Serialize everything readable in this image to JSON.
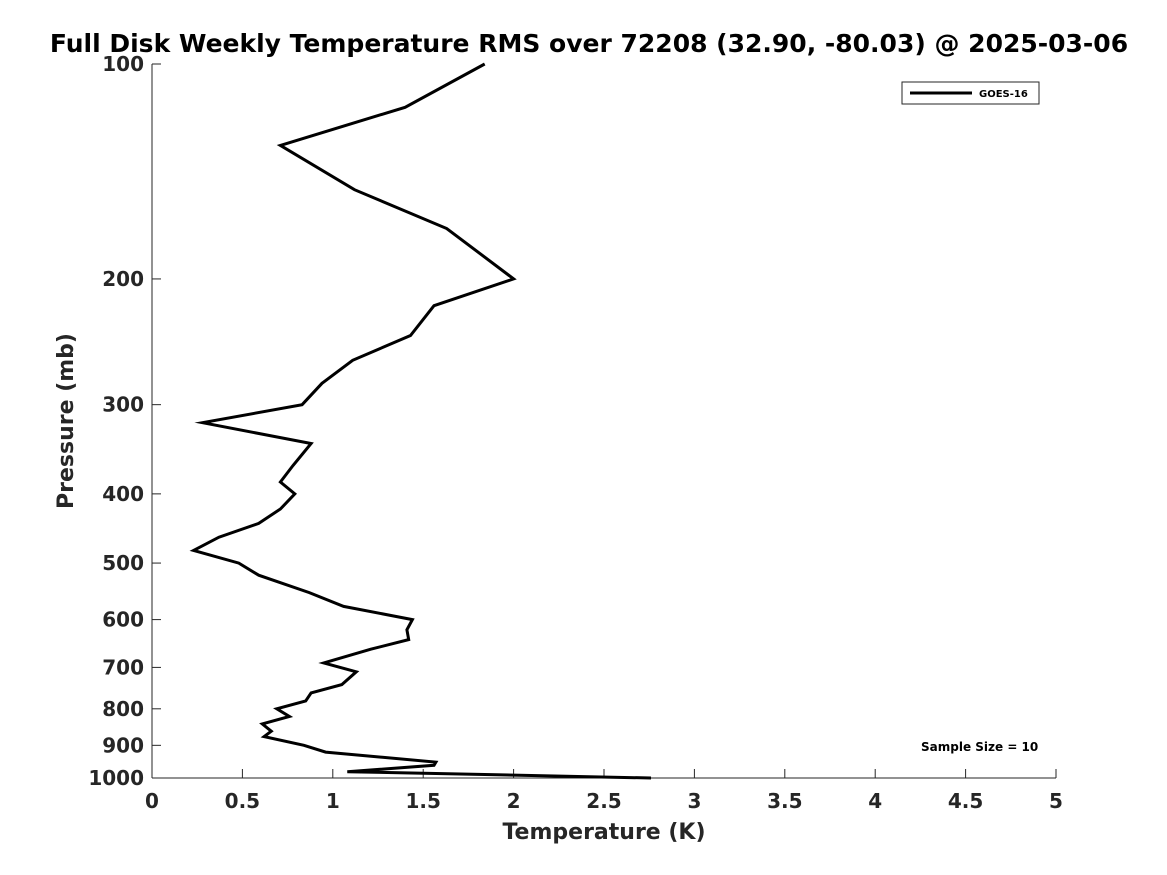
{
  "chart_data": {
    "type": "line",
    "title": "Full Disk Weekly Temperature RMS over 72208 (32.90, -80.03) @ 2025-03-06",
    "xlabel": "Temperature (K)",
    "ylabel": "Pressure (mb)",
    "xlim": [
      0,
      5
    ],
    "ylim": [
      100,
      1000
    ],
    "yscale": "log",
    "y_reversed": true,
    "x_ticks": [
      "0",
      "0.5",
      "1",
      "1.5",
      "2",
      "2.5",
      "3",
      "3.5",
      "4",
      "4.5",
      "5"
    ],
    "x_tick_values": [
      0,
      0.5,
      1,
      1.5,
      2,
      2.5,
      3,
      3.5,
      4,
      4.5,
      5
    ],
    "y_ticks": [
      "100",
      "200",
      "300",
      "400",
      "500",
      "600",
      "700",
      "800",
      "900",
      "1000"
    ],
    "y_tick_values": [
      100,
      200,
      300,
      400,
      500,
      600,
      700,
      800,
      900,
      1000
    ],
    "grid": false,
    "legend": {
      "position": "top-right",
      "entries": [
        "GOES-16"
      ]
    },
    "annotation": "Sample Size = 10",
    "series": [
      {
        "name": "GOES-16",
        "color": "#000000",
        "x": [
          1.84,
          1.4,
          0.71,
          1.12,
          1.63,
          2.0,
          1.56,
          1.43,
          1.11,
          0.94,
          0.83,
          0.28,
          0.88,
          0.78,
          0.71,
          0.79,
          0.71,
          0.59,
          0.37,
          0.23,
          0.48,
          0.59,
          0.87,
          1.06,
          1.44,
          1.41,
          1.42,
          1.21,
          0.95,
          1.13,
          1.05,
          0.88,
          0.85,
          0.69,
          0.76,
          0.61,
          0.66,
          0.62,
          0.84,
          0.96,
          1.57,
          1.56,
          1.08,
          2.76
        ],
        "y": [
          100,
          115,
          130,
          150,
          170,
          200,
          218,
          240,
          260,
          280,
          300,
          318,
          340,
          365,
          385,
          400,
          420,
          440,
          460,
          480,
          500,
          520,
          550,
          575,
          600,
          620,
          640,
          660,
          690,
          710,
          740,
          760,
          780,
          800,
          820,
          840,
          860,
          875,
          900,
          920,
          950,
          960,
          980,
          1000
        ]
      }
    ]
  }
}
